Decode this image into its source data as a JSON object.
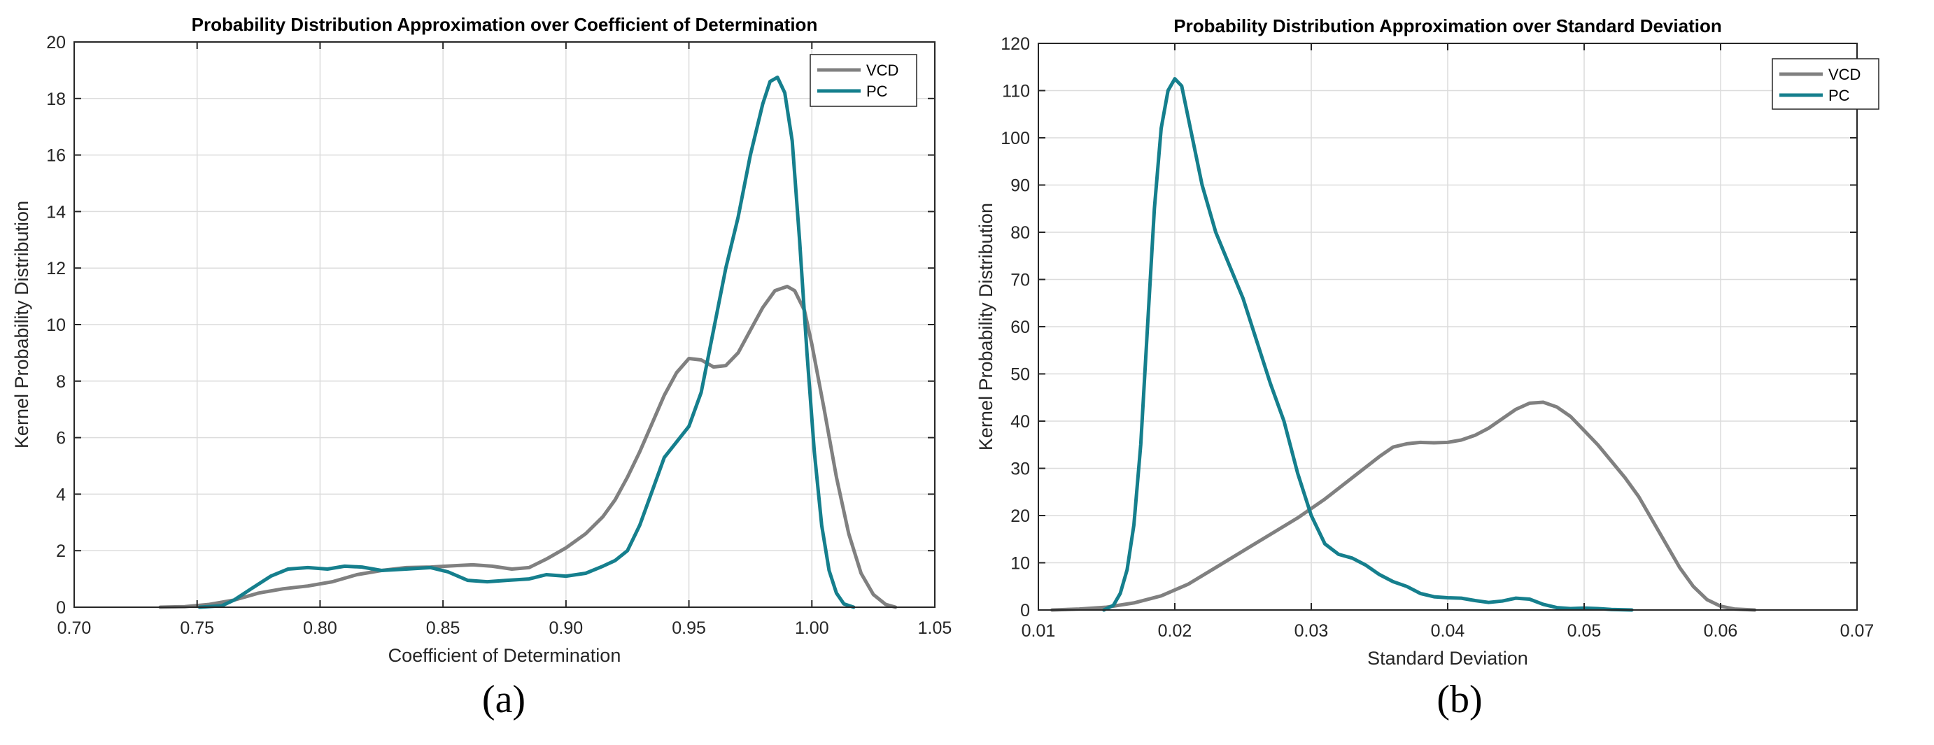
{
  "figure": {
    "caption_a": "(a)",
    "caption_b": "(b)"
  },
  "colors": {
    "vcd": "#808080",
    "pc": "#157f8d",
    "grid": "#dcdcdc",
    "axis": "#262626"
  },
  "chart_data": [
    {
      "type": "line",
      "title": "Probability Distribution Approximation over Coefficient of Determination",
      "xlabel": "Coefficient of Determination",
      "ylabel": "Kernel Probability Distribution",
      "xlim": [
        0.7,
        1.05
      ],
      "ylim": [
        0,
        20
      ],
      "xticks": [
        0.7,
        0.75,
        0.8,
        0.85,
        0.9,
        0.95,
        1.0,
        1.05
      ],
      "xtick_labels": [
        "0.70",
        "0.75",
        "0.80",
        "0.85",
        "0.90",
        "0.95",
        "1.00",
        "1.05"
      ],
      "yticks": [
        0,
        2,
        4,
        6,
        8,
        10,
        12,
        14,
        16,
        18,
        20
      ],
      "ytick_labels": [
        "0",
        "2",
        "4",
        "6",
        "8",
        "10",
        "12",
        "14",
        "16",
        "18",
        "20"
      ],
      "grid": true,
      "legend_position": "top-right",
      "series": [
        {
          "name": "VCD",
          "x": [
            0.735,
            0.745,
            0.755,
            0.765,
            0.775,
            0.785,
            0.795,
            0.805,
            0.815,
            0.825,
            0.835,
            0.845,
            0.855,
            0.862,
            0.87,
            0.878,
            0.885,
            0.892,
            0.9,
            0.908,
            0.915,
            0.92,
            0.925,
            0.93,
            0.935,
            0.94,
            0.945,
            0.95,
            0.955,
            0.96,
            0.965,
            0.97,
            0.975,
            0.98,
            0.985,
            0.99,
            0.993,
            0.997,
            1.0,
            1.005,
            1.01,
            1.015,
            1.02,
            1.025,
            1.03,
            1.034
          ],
          "y": [
            0.0,
            0.02,
            0.1,
            0.25,
            0.5,
            0.65,
            0.75,
            0.9,
            1.15,
            1.3,
            1.4,
            1.42,
            1.47,
            1.5,
            1.45,
            1.35,
            1.4,
            1.7,
            2.1,
            2.6,
            3.2,
            3.8,
            4.6,
            5.5,
            6.5,
            7.5,
            8.3,
            8.8,
            8.75,
            8.5,
            8.55,
            9.0,
            9.8,
            10.6,
            11.2,
            11.35,
            11.2,
            10.5,
            9.3,
            7.0,
            4.6,
            2.6,
            1.2,
            0.45,
            0.1,
            0.0
          ]
        },
        {
          "name": "PC",
          "x": [
            0.751,
            0.76,
            0.765,
            0.772,
            0.78,
            0.787,
            0.795,
            0.803,
            0.81,
            0.817,
            0.825,
            0.835,
            0.845,
            0.852,
            0.86,
            0.868,
            0.876,
            0.885,
            0.892,
            0.9,
            0.908,
            0.915,
            0.92,
            0.925,
            0.93,
            0.935,
            0.94,
            0.945,
            0.95,
            0.955,
            0.96,
            0.965,
            0.97,
            0.975,
            0.98,
            0.983,
            0.986,
            0.989,
            0.992,
            0.995,
            0.998,
            1.001,
            1.004,
            1.007,
            1.01,
            1.013,
            1.017
          ],
          "y": [
            0.0,
            0.05,
            0.25,
            0.65,
            1.1,
            1.35,
            1.4,
            1.35,
            1.45,
            1.42,
            1.3,
            1.35,
            1.4,
            1.25,
            0.95,
            0.9,
            0.95,
            1.0,
            1.15,
            1.1,
            1.2,
            1.45,
            1.65,
            2.0,
            2.9,
            4.1,
            5.3,
            5.85,
            6.4,
            7.6,
            9.8,
            12.0,
            13.8,
            16.0,
            17.8,
            18.6,
            18.75,
            18.2,
            16.5,
            13.0,
            9.0,
            5.5,
            2.9,
            1.3,
            0.5,
            0.12,
            0.0
          ]
        }
      ]
    },
    {
      "type": "line",
      "title": "Probability Distribution Approximation over Standard Deviation",
      "xlabel": "Standard Deviation",
      "ylabel": "Kernel Probability Distribution",
      "xlim": [
        0.01,
        0.07
      ],
      "ylim": [
        0,
        120
      ],
      "xticks": [
        0.01,
        0.02,
        0.03,
        0.04,
        0.05,
        0.06,
        0.07
      ],
      "xtick_labels": [
        "0.01",
        "0.02",
        "0.03",
        "0.04",
        "0.05",
        "0.06",
        "0.07"
      ],
      "yticks": [
        0,
        10,
        20,
        30,
        40,
        50,
        60,
        70,
        80,
        90,
        100,
        110,
        120
      ],
      "ytick_labels": [
        "0",
        "10",
        "20",
        "30",
        "40",
        "50",
        "60",
        "70",
        "80",
        "90",
        "100",
        "110",
        "120"
      ],
      "grid": true,
      "legend_position": "top-right",
      "series": [
        {
          "name": "VCD",
          "x": [
            0.011,
            0.013,
            0.015,
            0.017,
            0.019,
            0.021,
            0.023,
            0.025,
            0.027,
            0.029,
            0.031,
            0.033,
            0.035,
            0.036,
            0.037,
            0.038,
            0.039,
            0.04,
            0.041,
            0.042,
            0.043,
            0.044,
            0.045,
            0.046,
            0.047,
            0.048,
            0.049,
            0.05,
            0.051,
            0.052,
            0.053,
            0.054,
            0.055,
            0.056,
            0.057,
            0.058,
            0.059,
            0.06,
            0.061,
            0.0625
          ],
          "y": [
            0.0,
            0.2,
            0.6,
            1.5,
            3.0,
            5.5,
            9.0,
            12.5,
            16.0,
            19.5,
            23.5,
            28.0,
            32.5,
            34.5,
            35.2,
            35.5,
            35.4,
            35.5,
            36.0,
            37.0,
            38.5,
            40.5,
            42.5,
            43.8,
            44.0,
            43.0,
            41.0,
            38.0,
            35.0,
            31.5,
            28.0,
            24.0,
            19.0,
            14.0,
            9.0,
            5.0,
            2.2,
            0.8,
            0.2,
            0.0
          ]
        },
        {
          "name": "PC",
          "x": [
            0.0148,
            0.0155,
            0.016,
            0.0165,
            0.017,
            0.0175,
            0.018,
            0.0185,
            0.019,
            0.0195,
            0.02,
            0.0205,
            0.021,
            0.022,
            0.023,
            0.024,
            0.025,
            0.026,
            0.027,
            0.028,
            0.029,
            0.03,
            0.031,
            0.032,
            0.033,
            0.034,
            0.035,
            0.036,
            0.037,
            0.038,
            0.039,
            0.04,
            0.041,
            0.042,
            0.043,
            0.044,
            0.045,
            0.046,
            0.047,
            0.048,
            0.049,
            0.05,
            0.051,
            0.052,
            0.0535
          ],
          "y": [
            0.0,
            1.0,
            3.5,
            8.5,
            18.0,
            35.0,
            60.0,
            85.0,
            102.0,
            110.0,
            112.5,
            111.0,
            104.0,
            90.0,
            80.0,
            73.0,
            66.0,
            57.0,
            48.0,
            40.0,
            29.0,
            20.0,
            14.0,
            11.8,
            11.0,
            9.5,
            7.5,
            6.0,
            5.0,
            3.5,
            2.8,
            2.6,
            2.5,
            2.0,
            1.6,
            1.9,
            2.5,
            2.3,
            1.2,
            0.5,
            0.3,
            0.4,
            0.3,
            0.1,
            0.0
          ]
        }
      ]
    }
  ]
}
